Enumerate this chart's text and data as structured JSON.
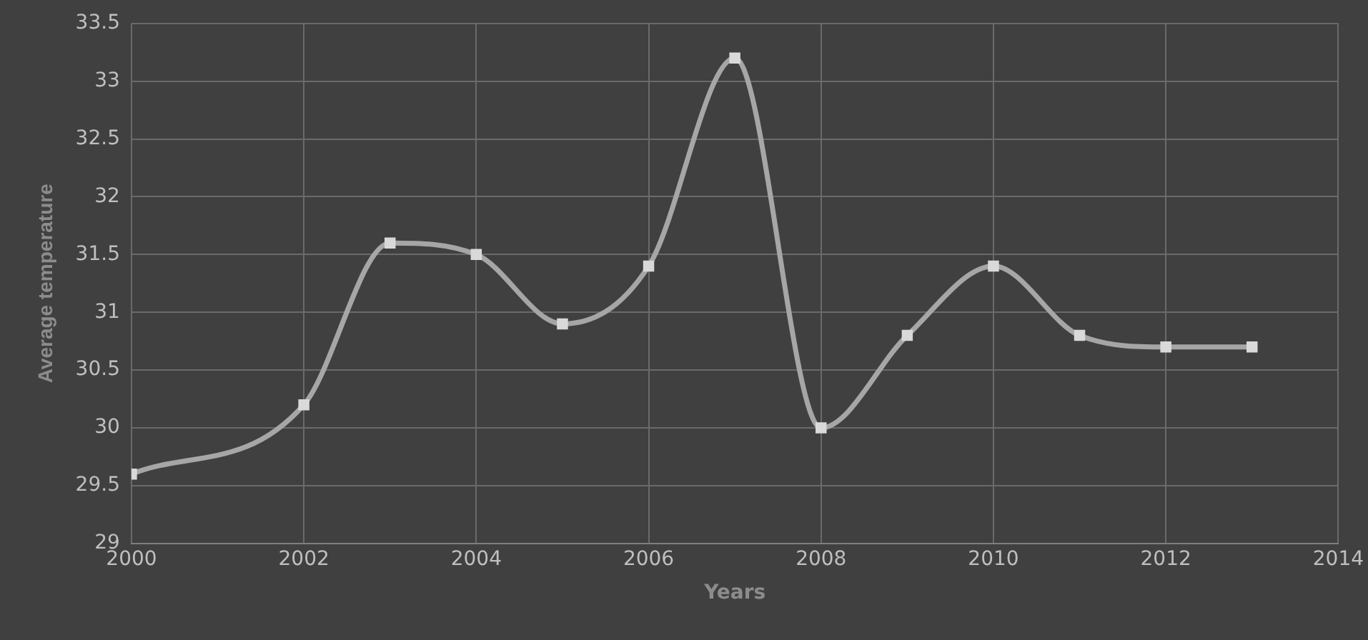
{
  "chart_data": {
    "type": "line",
    "xlabel": "Years",
    "ylabel": "Average temperature",
    "x": [
      2000,
      2002,
      2003,
      2004,
      2005,
      2006,
      2007,
      2008,
      2009,
      2010,
      2011,
      2012,
      2013
    ],
    "series": [
      {
        "color": "#a6a6a6",
        "values": [
          29.6,
          30.2,
          31.6,
          31.5,
          30.9,
          31.4,
          33.2,
          30.0,
          30.8,
          31.4,
          30.8,
          30.7,
          30.7
        ]
      }
    ],
    "xlim": [
      2000,
      2014
    ],
    "xticks": [
      2000,
      2002,
      2004,
      2006,
      2008,
      2010,
      2012,
      2014
    ],
    "ylim": [
      29,
      33.5
    ],
    "yticks": [
      29,
      29.5,
      30,
      30.5,
      31,
      31.5,
      32,
      32.5,
      33,
      33.5
    ],
    "grid": true,
    "legend": false,
    "marker": "square",
    "line_style": "solid"
  }
}
